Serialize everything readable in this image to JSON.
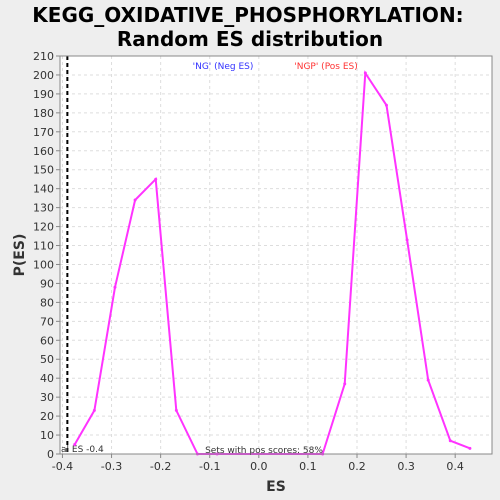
{
  "chart_data": {
    "type": "line",
    "title_line1": "KEGG_OXIDATIVE_PHOSPHORYLATION:",
    "title_line2": "Random ES distribution",
    "xlabel": "ES",
    "ylabel": "P(ES)",
    "xlim": [
      -0.405,
      0.475
    ],
    "ylim": [
      0,
      210
    ],
    "xticks": [
      -0.4,
      -0.3,
      -0.2,
      -0.1,
      0.0,
      0.1,
      0.2,
      0.3,
      0.4
    ],
    "xtick_labels": [
      "-0.4",
      "-0.3",
      "-0.2",
      "-0.1",
      "0.0",
      "0.1",
      "0.2",
      "0.3",
      "0.4"
    ],
    "yticks": [
      0,
      10,
      20,
      30,
      40,
      50,
      60,
      70,
      80,
      90,
      100,
      110,
      120,
      130,
      140,
      150,
      160,
      170,
      180,
      190,
      200,
      210
    ],
    "ytick_labels": [
      "0",
      "10",
      "20",
      "30",
      "40",
      "50",
      "60",
      "70",
      "80",
      "90",
      "100",
      "110",
      "120",
      "130",
      "140",
      "150",
      "160",
      "170",
      "180",
      "190",
      "200",
      "210"
    ],
    "grid": true,
    "series": [
      {
        "color": "#ff33ff",
        "points": [
          [
            -0.375,
            5
          ],
          [
            -0.335,
            23
          ],
          [
            -0.293,
            88
          ],
          [
            -0.252,
            134
          ],
          [
            -0.21,
            145
          ],
          [
            -0.168,
            23
          ],
          [
            -0.125,
            0
          ],
          [
            -0.085,
            0
          ],
          [
            0.13,
            0
          ],
          [
            0.175,
            37
          ],
          [
            0.217,
            201
          ],
          [
            0.26,
            184
          ],
          [
            0.302,
            113
          ],
          [
            0.345,
            39
          ],
          [
            0.39,
            7
          ],
          [
            0.43,
            3
          ]
        ]
      }
    ],
    "actual_es_line": {
      "x": -0.39,
      "label": "al ES -0.4",
      "color": "#000000"
    },
    "neg_label": {
      "text": "'NG' (Neg ES)",
      "color": "#3333ff"
    },
    "pos_label": {
      "text": "'NGP' (Pos ES)",
      "color": "#ff3333"
    },
    "footer_note": "Sets with pos scores: 58%"
  }
}
